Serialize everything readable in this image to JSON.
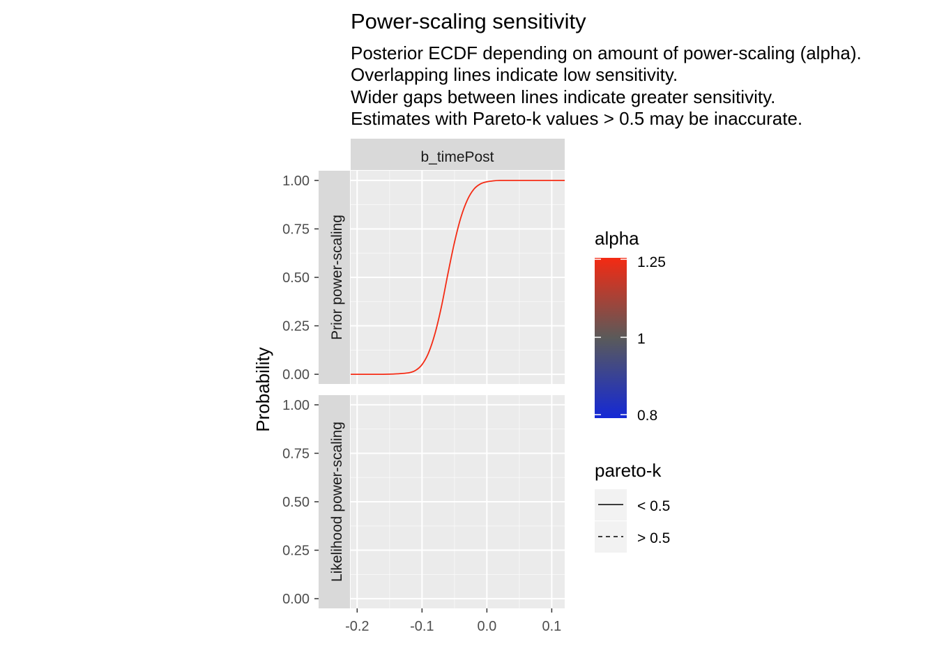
{
  "colors": {
    "panel_bg": "#ebebeb",
    "strip_bg": "#d9d9d9",
    "grid": "#ffffff",
    "alpha_high": "#f42a13",
    "alpha_mid": "#5a5a5a",
    "alpha_low": "#1428d6"
  },
  "chart_data": {
    "type": "line",
    "title": "Power-scaling sensitivity",
    "subtitle": [
      "Posterior ECDF depending on amount of power-scaling (alpha).",
      "Overlapping lines indicate low sensitivity.",
      "Wider gaps between lines indicate greater sensitivity.",
      "Estimates with Pareto-k values > 0.5 may be inaccurate."
    ],
    "ylabel": "Probability",
    "xlabel": "",
    "column_strips": [
      "b_timePost"
    ],
    "row_strips": [
      "Prior power-scaling",
      "Likelihood power-scaling"
    ],
    "xlim": [
      -0.21,
      0.12
    ],
    "ylim": [
      0,
      1
    ],
    "x_ticks": [
      -0.2,
      -0.1,
      0.0,
      0.1
    ],
    "x_tick_labels": [
      "-0.2",
      "-0.1",
      "0.0",
      "0.1"
    ],
    "y_ticks": [
      0,
      0.25,
      0.5,
      0.75,
      1.0
    ],
    "y_tick_labels": [
      "0.00",
      "0.25",
      "0.50",
      "0.75",
      "1.00"
    ],
    "grid": true,
    "series": [
      {
        "panel": "Prior power-scaling",
        "alpha": 1.25,
        "pareto_k": "< 0.5",
        "x": [
          -0.21,
          -0.16,
          -0.14,
          -0.12,
          -0.11,
          -0.1,
          -0.09,
          -0.08,
          -0.07,
          -0.06,
          -0.05,
          -0.04,
          -0.03,
          -0.02,
          -0.01,
          0.0,
          0.01,
          0.02,
          0.04,
          0.12
        ],
        "y": [
          0.0,
          0.0,
          0.002,
          0.008,
          0.02,
          0.05,
          0.11,
          0.21,
          0.35,
          0.52,
          0.68,
          0.81,
          0.9,
          0.955,
          0.982,
          0.993,
          0.998,
          1.0,
          1.0,
          1.0
        ]
      }
    ],
    "legend": {
      "alpha": {
        "title": "alpha",
        "labels": [
          "1.25",
          "1",
          "0.8"
        ]
      },
      "pareto_k": {
        "title": "pareto-k",
        "labels": [
          "< 0.5",
          "> 0.5"
        ]
      }
    }
  }
}
